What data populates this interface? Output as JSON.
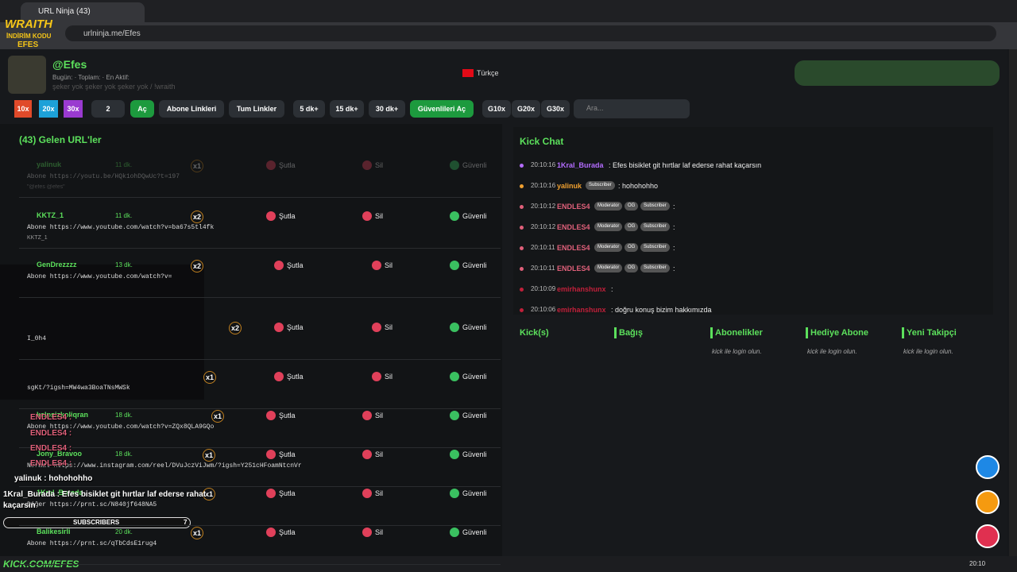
{
  "browser": {
    "tab_title": "URL Ninja (43)",
    "url": "urlninja.me/Efes"
  },
  "header": {
    "username": "@Efes",
    "stats": "Bugün: · Toplam: · En Aktif:",
    "subtitle": "şeker yok şeker yok şeker yok / !wraith",
    "language": "Türkçe"
  },
  "toolbar": {
    "buttons": [
      "10x",
      "20x",
      "30x",
      "2",
      "Aç",
      "Abone Linkleri",
      "Tum Linkler",
      "5 dk+",
      "15 dk+",
      "30 dk+",
      "Güvenlileri Aç",
      "G10x",
      "G20x",
      "G30x"
    ],
    "search_placeholder": "Ara..."
  },
  "urls": {
    "title": "(43) Gelen URL'ler",
    "actions": [
      "Şutla",
      "Sil",
      "Güvenli"
    ],
    "rows": [
      {
        "user": "yalinuk",
        "time": "11 dk.",
        "mult": "x1",
        "link": "Abone https://youtu.be/HQk1ohDQwUc?t=197",
        "note": "\"@efes @efes\""
      },
      {
        "user": "KKTZ_1",
        "time": "11 dk.",
        "mult": "x2",
        "link": "Abone https://www.youtube.com/watch?v=ba67s5tl4fk",
        "note": "KKTZ_1"
      },
      {
        "user": "GenDrezzzz",
        "time": "13 dk.",
        "mult": "x2",
        "link": "Abone https://www.youtube.com/watch?v=",
        "note": null
      },
      {
        "user": null,
        "time": null,
        "mult": "x2",
        "link": "I_0h4",
        "note": null
      },
      {
        "user": null,
        "time": null,
        "mult": "x1",
        "link": "sgKt/?igsh=MW4wa3BoaTNsMWSk",
        "note": null
      },
      {
        "user": "kalpsizkoliqran",
        "time": "18 dk.",
        "mult": "x1",
        "link": "Abone https://www.youtube.com/watch?v=ZQx8QLA9GQo",
        "note": null
      },
      {
        "user": "Jony_Bravoo",
        "time": "18 dk.",
        "mult": "x1",
        "link": "Normal https://www.instagram.com/reel/DVuJczViJwm/?igsh=Y251cHFoamNtcnVr",
        "note": null
      },
      {
        "user": "1Kral_Burada",
        "time": null,
        "mult": "x1",
        "link": "Diğer https://prnt.sc/N840jf648NA5",
        "note": null
      },
      {
        "user": "Balikesirli",
        "time": "20 dk.",
        "mult": "x1",
        "link": "Abone https://prnt.sc/qTbCdsE1rug4",
        "note": null
      }
    ]
  },
  "chat": {
    "title": "Kick Chat",
    "messages": [
      {
        "time": "20:10:16",
        "user": "1Kral_Burada",
        "color": "#b46cff",
        "badges": [],
        "text": ": Efes bisiklet git hırtlar laf ederse rahat kaçarsın"
      },
      {
        "time": "20:10:16",
        "user": "yalinuk",
        "color": "#f0a030",
        "badges": [
          "Subscriber"
        ],
        "text": ": hohohohho"
      },
      {
        "time": "20:10:12",
        "user": "ENDLES4",
        "color": "#e0607a",
        "badges": [
          "Moderator",
          "OG",
          "Subscriber"
        ],
        "text": ":"
      },
      {
        "time": "20:10:12",
        "user": "ENDLES4",
        "color": "#e0607a",
        "badges": [
          "Moderator",
          "OG",
          "Subscriber"
        ],
        "text": ":"
      },
      {
        "time": "20:10:11",
        "user": "ENDLES4",
        "color": "#e0607a",
        "badges": [
          "Moderator",
          "OG",
          "Subscriber"
        ],
        "text": ":"
      },
      {
        "time": "20:10:11",
        "user": "ENDLES4",
        "color": "#e0607a",
        "badges": [
          "Moderator",
          "OG",
          "Subscriber"
        ],
        "text": ":"
      },
      {
        "time": "20:10:09",
        "user": "emirhanshunx",
        "color": "#c0203a",
        "badges": [],
        "text": ":"
      },
      {
        "time": "20:10:06",
        "user": "emirhanshunx",
        "color": "#c0203a",
        "badges": [],
        "text": ": doğru konuş bizim hakkımızda"
      }
    ]
  },
  "panels": [
    {
      "title": "Kick(s)",
      "note": null
    },
    {
      "title": "Bağış",
      "note": null
    },
    {
      "title": "Abonelikler",
      "note": "kick ile login olun."
    },
    {
      "title": "Hediye Abone",
      "note": "kick ile login olun."
    },
    {
      "title": "Yeni Takipçi",
      "note": "kick ile login olun."
    }
  ],
  "overlay": {
    "brand": "WRAITH",
    "code_label": "İNDİRİM KODU",
    "code": "EFES",
    "chat_lines": [
      "ENDLES4 :",
      "ENDLES4 :",
      "ENDLES4 :",
      "ENDLES4 :",
      "yalinuk : hohohohho",
      "1Kral_Burada : Efes bisiklet git hırtlar laf ederse rahat kaçarsın"
    ],
    "subscribers_label": "SUBSCRIBERS",
    "subscribers": 7,
    "footer": "KICK.COM/EFES"
  },
  "taskbar": {
    "clock": "20:10"
  }
}
